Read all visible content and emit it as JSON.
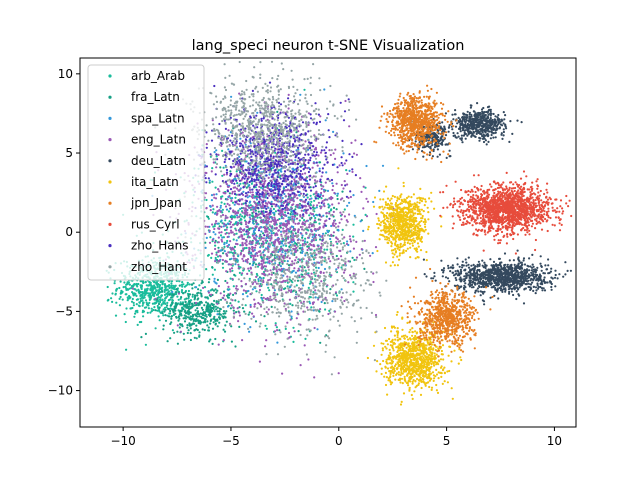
{
  "chart_data": {
    "type": "scatter",
    "title": "lang_speci neuron t-SNE Visualization",
    "xlabel": "",
    "ylabel": "",
    "xlim": [
      -12,
      11
    ],
    "ylim": [
      -12.3,
      11
    ],
    "xticks": [
      -10,
      -5,
      0,
      5,
      10
    ],
    "yticks": [
      -10,
      -5,
      0,
      5,
      10
    ],
    "xtick_labels": [
      "−10",
      "−5",
      "0",
      "5",
      "10"
    ],
    "ytick_labels": [
      "−10",
      "−5",
      "0",
      "5",
      "10"
    ],
    "grid": false,
    "legend_position": "top-left",
    "series": [
      {
        "name": "arb_Arab",
        "color": "#1abc9c",
        "clusters": [
          {
            "center": [
              -8.5,
              -3.5
            ],
            "spread": [
              1.6,
              1.7
            ],
            "count": 650
          },
          {
            "center": [
              -4.5,
              0.5
            ],
            "spread": [
              3.2,
              4.5
            ],
            "count": 350
          },
          {
            "center": [
              -2.0,
              -1.0
            ],
            "spread": [
              3.0,
              4.5
            ],
            "count": 250
          }
        ]
      },
      {
        "name": "fra_Latn",
        "color": "#16a085",
        "clusters": [
          {
            "center": [
              -6.5,
              -5.0
            ],
            "spread": [
              1.5,
              1.4
            ],
            "count": 400
          },
          {
            "center": [
              -3.0,
              0.0
            ],
            "spread": [
              3.0,
              4.8
            ],
            "count": 250
          }
        ]
      },
      {
        "name": "spa_Latn",
        "color": "#3498db",
        "clusters": [
          {
            "center": [
              -3.0,
              1.0
            ],
            "spread": [
              3.2,
              5.0
            ],
            "count": 500
          }
        ]
      },
      {
        "name": "eng_Latn",
        "color": "#9b59b6",
        "clusters": [
          {
            "center": [
              -3.0,
              0.5
            ],
            "spread": [
              3.3,
              5.0
            ],
            "count": 1400
          }
        ]
      },
      {
        "name": "deu_Latn",
        "color": "#34495e",
        "clusters": [
          {
            "center": [
              6.5,
              6.8
            ],
            "spread": [
              1.1,
              0.8
            ],
            "count": 500
          },
          {
            "center": [
              4.3,
              6.0
            ],
            "spread": [
              0.8,
              0.8
            ],
            "count": 220
          },
          {
            "center": [
              7.5,
              -2.8
            ],
            "spread": [
              2.0,
              0.9
            ],
            "count": 1000
          }
        ]
      },
      {
        "name": "ita_Latn",
        "color": "#f1c40f",
        "clusters": [
          {
            "center": [
              3.0,
              0.5
            ],
            "spread": [
              1.0,
              1.7
            ],
            "count": 700
          },
          {
            "center": [
              3.5,
              -8.0
            ],
            "spread": [
              1.2,
              1.6
            ],
            "count": 900
          }
        ]
      },
      {
        "name": "jpn_Jpan",
        "color": "#e67e22",
        "clusters": [
          {
            "center": [
              3.6,
              7.0
            ],
            "spread": [
              1.1,
              1.5
            ],
            "count": 800
          },
          {
            "center": [
              5.0,
              -5.5
            ],
            "spread": [
              1.2,
              1.5
            ],
            "count": 700
          }
        ]
      },
      {
        "name": "rus_Cyrl",
        "color": "#e74c3c",
        "clusters": [
          {
            "center": [
              7.8,
              1.5
            ],
            "spread": [
              1.8,
              1.3
            ],
            "count": 1500
          }
        ]
      },
      {
        "name": "zho_Hans",
        "color": "#4a2fbf",
        "clusters": [
          {
            "center": [
              -3.0,
              4.5
            ],
            "spread": [
              2.6,
              3.0
            ],
            "count": 700
          }
        ]
      },
      {
        "name": "zho_Hant",
        "color": "#95a5a6",
        "clusters": [
          {
            "center": [
              -3.5,
              6.5
            ],
            "spread": [
              2.6,
              2.8
            ],
            "count": 800
          },
          {
            "center": [
              -1.5,
              -3.0
            ],
            "spread": [
              2.8,
              3.5
            ],
            "count": 500
          }
        ]
      }
    ]
  }
}
